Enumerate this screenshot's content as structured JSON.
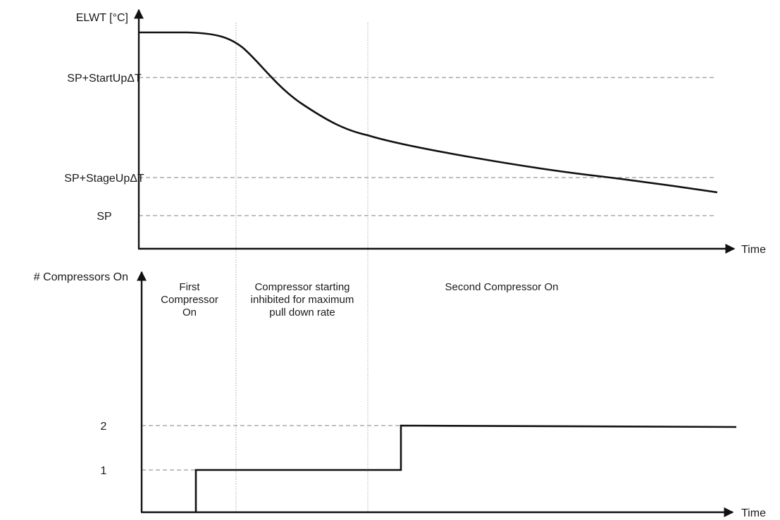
{
  "colors": {
    "axis": "#111111",
    "curve": "#111111",
    "reference_line": "#9a9a9a",
    "phase_divider": "#a8a8a8",
    "text": "#1a1a1a"
  },
  "top_plot": {
    "y_axis_label": "ELWT [°C]",
    "x_axis_label": "Time",
    "reference_levels": [
      {
        "label": "SP+StartUpΔT"
      },
      {
        "label": "SP+StageUpΔT"
      },
      {
        "label": "SP"
      }
    ]
  },
  "bottom_plot": {
    "y_axis_label": "# Compressors On",
    "x_axis_label": "Time",
    "levels": [
      {
        "label": "2",
        "value": 2
      },
      {
        "label": "1",
        "value": 1
      }
    ],
    "step_profile": [
      {
        "phase": 0,
        "compressors_on": 0
      },
      {
        "phase": 1,
        "compressors_on": 1
      },
      {
        "phase": 2,
        "compressors_on": 1
      },
      {
        "phase": 3,
        "compressors_on": 2
      }
    ]
  },
  "phases": [
    {
      "lines": [
        "First",
        "Compressor",
        "On"
      ]
    },
    {
      "lines": [
        "Compressor starting",
        "inhibited for maximum",
        "pull down rate"
      ]
    },
    {
      "lines": [
        "Second Compressor On"
      ]
    }
  ]
}
